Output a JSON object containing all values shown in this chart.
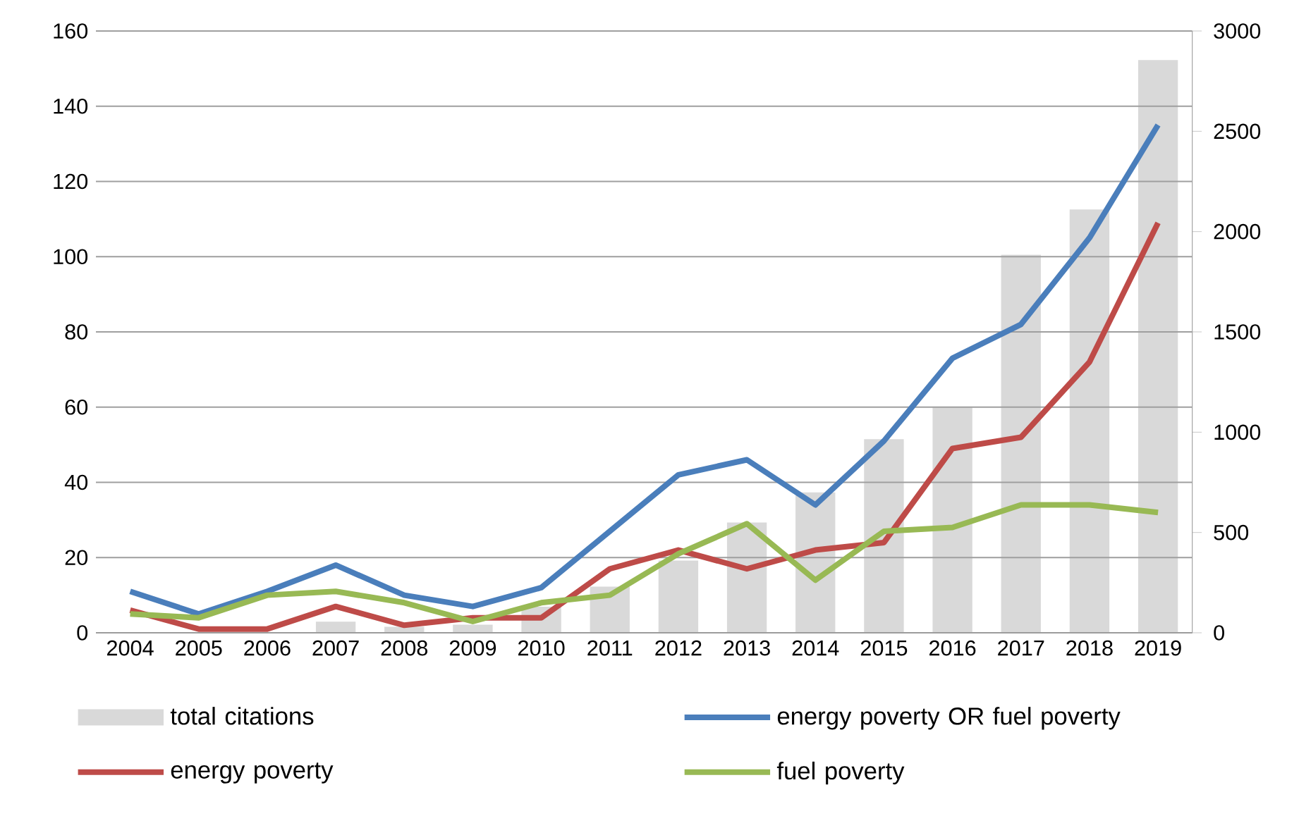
{
  "chart_data": {
    "type": "line",
    "categories": [
      "2004",
      "2005",
      "2006",
      "2007",
      "2008",
      "2009",
      "2010",
      "2011",
      "2012",
      "2013",
      "2014",
      "2015",
      "2016",
      "2017",
      "2018",
      "2019"
    ],
    "series": [
      {
        "name": "total citations",
        "type": "bar",
        "axis": "y2",
        "color": "#d9d9d9",
        "values": [
          null,
          2,
          null,
          55,
          30,
          40,
          130,
          230,
          360,
          550,
          700,
          965,
          1125,
          1885,
          2110,
          2855
        ]
      },
      {
        "name": "energy poverty OR fuel poverty",
        "color": "#4a7ebb",
        "values": [
          11,
          5,
          11,
          18,
          10,
          7,
          12,
          27,
          42,
          46,
          34,
          51,
          73,
          82,
          105,
          135
        ]
      },
      {
        "name": "energy poverty",
        "color": "#be4b48",
        "values": [
          6,
          1,
          1,
          7,
          2,
          4,
          4,
          17,
          22,
          17,
          22,
          24,
          49,
          52,
          72,
          109
        ]
      },
      {
        "name": "fuel poverty",
        "color": "#98b954",
        "values": [
          5,
          4,
          10,
          11,
          8,
          3,
          8,
          10,
          21,
          29,
          14,
          27,
          28,
          34,
          34,
          32
        ]
      }
    ],
    "ylim": [
      0,
      160
    ],
    "yticks": [
      0,
      20,
      40,
      60,
      80,
      100,
      120,
      140,
      160
    ],
    "y2lim": [
      0,
      3000
    ],
    "y2ticks": [
      0,
      500,
      1000,
      1500,
      2000,
      2500,
      3000
    ],
    "grid": "y",
    "legend": "bottom"
  }
}
